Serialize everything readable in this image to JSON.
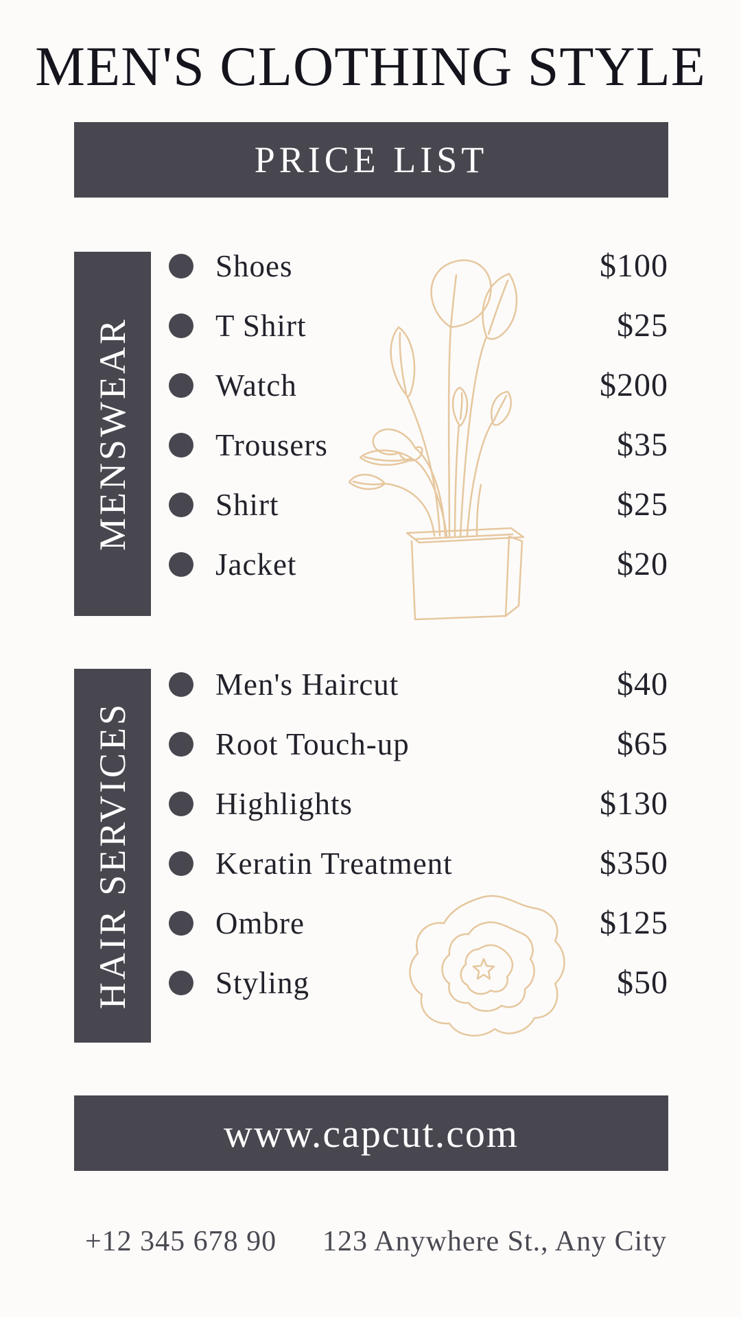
{
  "colors": {
    "dark_slate": "#48474f",
    "tan_line_art": "#e6c79f",
    "ink": "#23222b",
    "title_ink": "#15141d",
    "muted_gray": "#4a4952",
    "background": "#fcfbf9",
    "banner_text": "#ffffff"
  },
  "header": {
    "title": "MEN'S CLOTHING STYLE",
    "banner_label": "PRICE LIST"
  },
  "sections": [
    {
      "label": "MENSWEAR",
      "items": [
        {
          "name": "Shoes",
          "price": "$100"
        },
        {
          "name": "T Shirt",
          "price": "$25"
        },
        {
          "name": "Watch",
          "price": "$200"
        },
        {
          "name": "Trousers",
          "price": "$35"
        },
        {
          "name": "Shirt",
          "price": "$25"
        },
        {
          "name": "Jacket",
          "price": "$20"
        }
      ]
    },
    {
      "label": "HAIR SERVICES",
      "items": [
        {
          "name": "Men's Haircut",
          "price": "$40"
        },
        {
          "name": "Root Touch-up",
          "price": "$65"
        },
        {
          "name": "Highlights",
          "price": "$130"
        },
        {
          "name": "Keratin Treatment",
          "price": "$350"
        },
        {
          "name": "Ombre",
          "price": "$125"
        },
        {
          "name": "Styling",
          "price": "$50"
        }
      ]
    }
  ],
  "website_banner": {
    "label": "www.capcut.com"
  },
  "footer": {
    "phone": "+12 345 678 90",
    "address": "123 Anywhere St., Any City"
  },
  "decorations": {
    "plant": "potted-plant-line-art",
    "flower": "abstract-wavy-flower-line-art"
  }
}
